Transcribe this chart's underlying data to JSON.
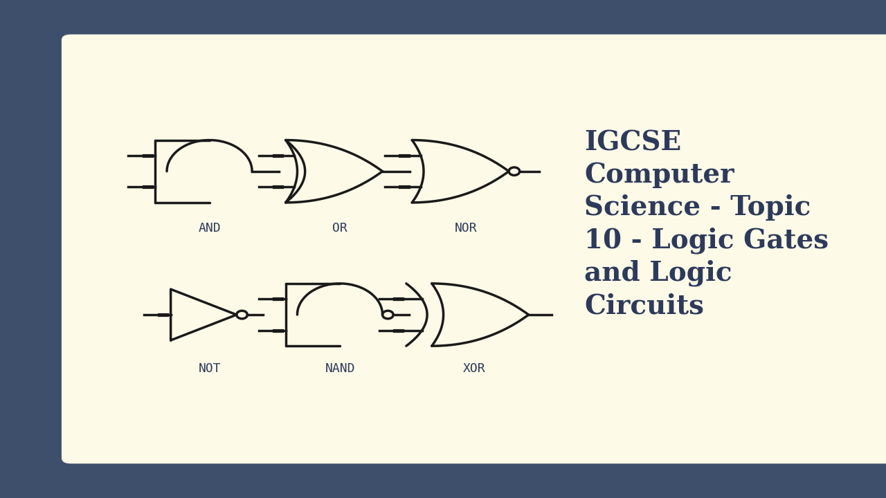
{
  "background_outer": "#3d4f6b",
  "background_inner": "#fdfae8",
  "text_color": "#2d3a5a",
  "gate_color": "#1a1a1a",
  "title_lines": [
    "IGCSE",
    "Computer",
    "Science - Topic",
    "10 - Logic Gates",
    "and Logic",
    "Circuits"
  ],
  "title_fontsize": 28,
  "gate_labels": [
    "AND",
    "OR",
    "NOR",
    "NOT",
    "NAND",
    "XOR"
  ],
  "label_fontsize": 13,
  "lw": 2.5
}
